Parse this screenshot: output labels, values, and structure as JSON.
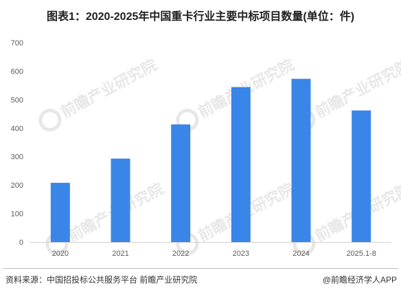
{
  "chart_data": {
    "type": "bar",
    "title": "图表1：2020-2025年中国重卡行业主要中标项目数量(单位：件)",
    "categories": [
      "2020",
      "2021",
      "2022",
      "2023",
      "2024",
      "2025.1-8"
    ],
    "values": [
      208,
      293,
      413,
      544,
      573,
      462
    ],
    "ylim": [
      0,
      700
    ],
    "yticks": [
      0,
      100,
      200,
      300,
      400,
      500,
      600,
      700
    ],
    "grid": false,
    "bar_color": "#3a86e8",
    "xlabel": "",
    "ylabel": ""
  },
  "footer": {
    "source": "资料来源：中国招投标公共服务平台 前瞻产业研究院",
    "credit": "@前瞻经济学人APP"
  },
  "watermark": {
    "text": "前瞻产业研究院"
  }
}
